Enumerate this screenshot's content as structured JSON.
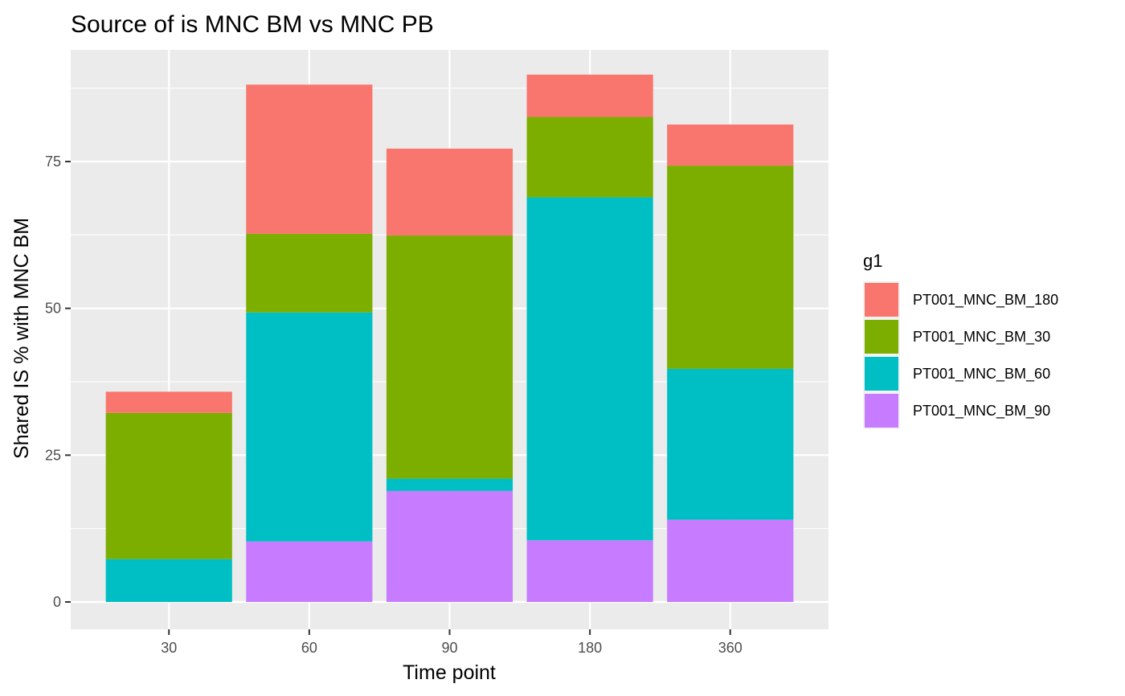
{
  "chart_data": {
    "type": "bar",
    "stacked": true,
    "title": "Source of is MNC BM vs MNC PB",
    "xlabel": "Time point",
    "ylabel": "Shared IS % with MNC BM",
    "categories": [
      "30",
      "60",
      "90",
      "180",
      "360"
    ],
    "ylim": [
      0,
      92
    ],
    "yticks": [
      0,
      25,
      50,
      75
    ],
    "grid": true,
    "legend": {
      "title": "g1",
      "placement": "right",
      "entries": [
        "PT001_MNC_BM_180",
        "PT001_MNC_BM_30",
        "PT001_MNC_BM_60",
        "PT001_MNC_BM_90"
      ]
    },
    "stack_order_bottom_to_top": [
      "PT001_MNC_BM_90",
      "PT001_MNC_BM_60",
      "PT001_MNC_BM_30",
      "PT001_MNC_BM_180"
    ],
    "series": [
      {
        "name": "PT001_MNC_BM_180",
        "color": "#F8766D",
        "values": [
          3.6,
          25.4,
          14.8,
          7.2,
          7.0
        ]
      },
      {
        "name": "PT001_MNC_BM_30",
        "color": "#7CAE00",
        "values": [
          24.9,
          13.4,
          41.4,
          13.7,
          34.6
        ]
      },
      {
        "name": "PT001_MNC_BM_60",
        "color": "#00BFC4",
        "values": [
          7.3,
          39.0,
          2.1,
          58.4,
          25.7
        ]
      },
      {
        "name": "PT001_MNC_BM_90",
        "color": "#C77CFF",
        "values": [
          0,
          10.3,
          18.9,
          10.5,
          14.0
        ]
      }
    ]
  }
}
